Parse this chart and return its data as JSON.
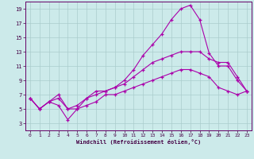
{
  "xlabel": "Windchill (Refroidissement éolien,°C)",
  "background_color": "#cceaea",
  "grid_color": "#aacccc",
  "line_color": "#aa00aa",
  "spine_color": "#660066",
  "tick_color": "#440044",
  "xlim": [
    -0.5,
    23.5
  ],
  "ylim": [
    2,
    20
  ],
  "yticks": [
    3,
    5,
    7,
    9,
    11,
    13,
    15,
    17,
    19
  ],
  "xticks": [
    0,
    1,
    2,
    3,
    4,
    5,
    6,
    7,
    8,
    9,
    10,
    11,
    12,
    13,
    14,
    15,
    16,
    17,
    18,
    19,
    20,
    21,
    22,
    23
  ],
  "series1_x": [
    0,
    1,
    2,
    3,
    4,
    5,
    6,
    7,
    8,
    9,
    10,
    11,
    12,
    13,
    14,
    15,
    16,
    17,
    18,
    19,
    20,
    21,
    22,
    23
  ],
  "series1_y": [
    6.5,
    5.0,
    6.0,
    6.5,
    5.0,
    5.0,
    6.5,
    7.5,
    7.5,
    8.0,
    9.0,
    10.5,
    12.5,
    14.0,
    15.5,
    17.5,
    19.0,
    19.5,
    17.5,
    12.8,
    11.0,
    11.0,
    9.0,
    7.5
  ],
  "series2_x": [
    0,
    1,
    2,
    3,
    4,
    5,
    6,
    7,
    8,
    9,
    10,
    11,
    12,
    13,
    14,
    15,
    16,
    17,
    18,
    19,
    20,
    21,
    22,
    23
  ],
  "series2_y": [
    6.5,
    5.0,
    6.0,
    7.0,
    5.0,
    5.5,
    6.5,
    7.0,
    7.5,
    8.0,
    8.5,
    9.5,
    10.5,
    11.5,
    12.0,
    12.5,
    13.0,
    13.0,
    13.0,
    12.0,
    11.5,
    11.5,
    9.5,
    7.5
  ],
  "series3_x": [
    0,
    1,
    2,
    3,
    4,
    5,
    6,
    7,
    8,
    9,
    10,
    11,
    12,
    13,
    14,
    15,
    16,
    17,
    18,
    19,
    20,
    21,
    22,
    23
  ],
  "series3_y": [
    6.5,
    5.0,
    6.0,
    5.5,
    3.5,
    5.0,
    5.5,
    6.0,
    7.0,
    7.0,
    7.5,
    8.0,
    8.5,
    9.0,
    9.5,
    10.0,
    10.5,
    10.5,
    10.0,
    9.5,
    8.0,
    7.5,
    7.0,
    7.5
  ]
}
